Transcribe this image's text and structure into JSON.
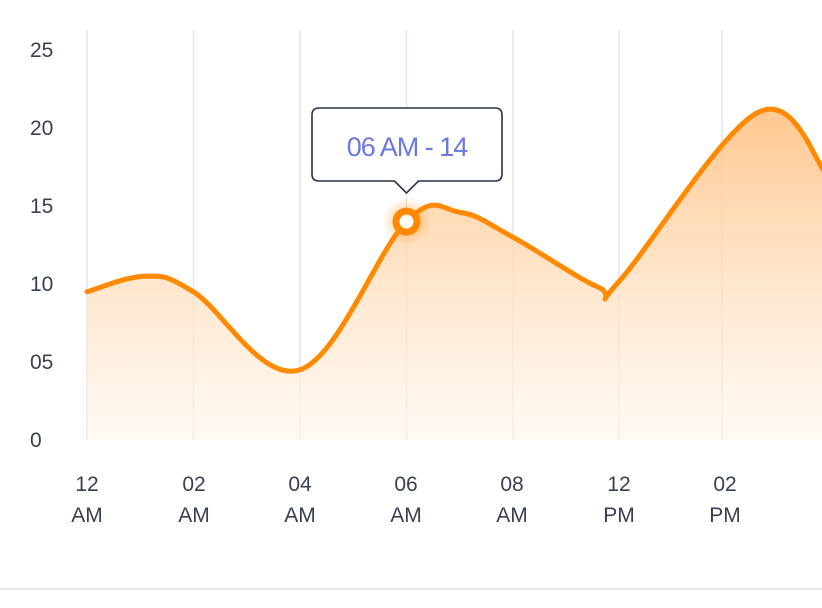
{
  "chart_data": {
    "type": "area",
    "yticks": [
      "0",
      "05",
      "10",
      "15",
      "20",
      "25"
    ],
    "ylim": [
      0,
      25
    ],
    "categories": [
      {
        "top": "12",
        "bottom": "AM"
      },
      {
        "top": "02",
        "bottom": "AM"
      },
      {
        "top": "04",
        "bottom": "AM"
      },
      {
        "top": "06",
        "bottom": "AM"
      },
      {
        "top": "08",
        "bottom": "AM"
      },
      {
        "top": "12",
        "bottom": "PM"
      },
      {
        "top": "02",
        "bottom": "PM"
      }
    ],
    "series": [
      {
        "x": [
          0,
          0.55,
          1,
          2,
          3,
          3.5,
          4,
          4.8,
          5,
          6.3,
          6.95
        ],
        "values": [
          9.5,
          10.5,
          9.5,
          4.5,
          14,
          14.6,
          13,
          9.8,
          10.2,
          21,
          17
        ]
      }
    ],
    "highlight": {
      "x": 3,
      "value": 14,
      "label": "06 AM - 14"
    },
    "grid": true,
    "colors": {
      "line": "#ff8a00",
      "fill_top": "#ffc489",
      "fill_bottom": "#fff6ec",
      "grid": "#e4e5f0",
      "tooltip_text": "#6b78e0",
      "tooltip_border": "#2a3045"
    }
  }
}
